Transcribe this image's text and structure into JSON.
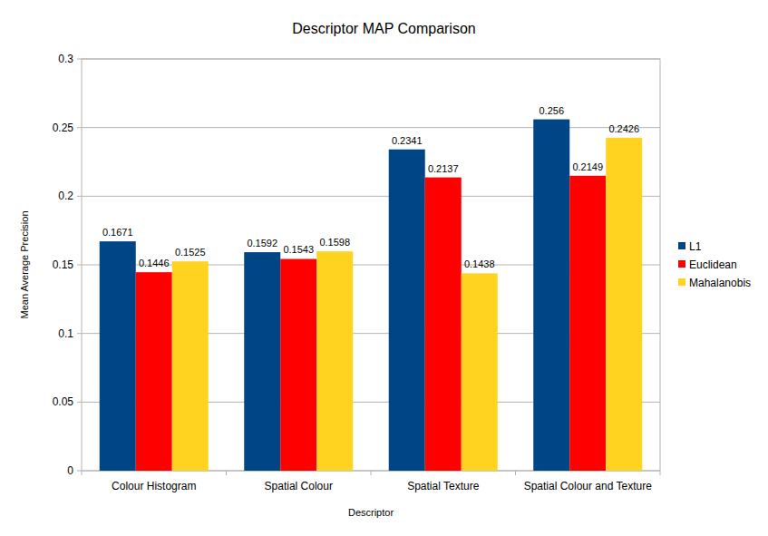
{
  "chart_data": {
    "type": "bar",
    "title": "Descriptor MAP Comparison",
    "x_label": "Descriptor",
    "y_label": "Mean Average Precision",
    "categories": [
      "Colour Histogram",
      "Spatial Colour",
      "Spatial Texture",
      "Spatial Colour and Texture"
    ],
    "series": [
      {
        "name": "L1",
        "color": "#004586",
        "values": [
          0.1671,
          0.1592,
          0.2341,
          0.256
        ]
      },
      {
        "name": "Euclidean",
        "color": "#ff0000",
        "values": [
          0.1446,
          0.1543,
          0.2137,
          0.2149
        ]
      },
      {
        "name": "Mahalanobis",
        "color": "#ffd320",
        "values": [
          0.1525,
          0.1598,
          0.1438,
          0.2426
        ]
      }
    ],
    "ylim": [
      0,
      0.3
    ],
    "yticks": [
      0,
      0.05,
      0.1,
      0.15,
      0.2,
      0.25,
      0.3
    ],
    "grid": true,
    "legend": "right",
    "data_labels": true
  }
}
